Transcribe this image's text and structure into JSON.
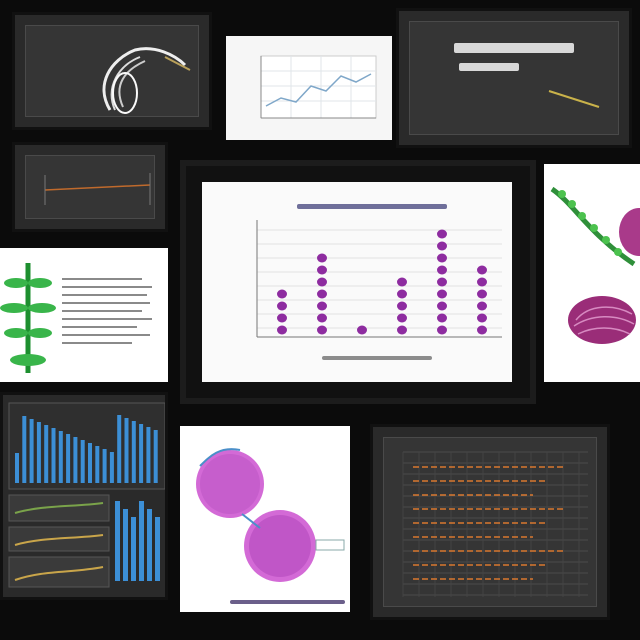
{
  "board": {
    "tiles": [
      {
        "name": "tile-plant-sketch",
        "kind": "dark"
      },
      {
        "name": "tile-line-chart",
        "kind": "light"
      },
      {
        "name": "tile-dark-title",
        "kind": "dark"
      },
      {
        "name": "tile-dark-timeline",
        "kind": "dark"
      },
      {
        "name": "tile-main-chart",
        "kind": "dark"
      },
      {
        "name": "tile-pod-and-bulb",
        "kind": "white"
      },
      {
        "name": "tile-green-plant-notes",
        "kind": "white"
      },
      {
        "name": "tile-blue-bars",
        "kind": "dark"
      },
      {
        "name": "tile-purple-cells",
        "kind": "white"
      },
      {
        "name": "tile-dark-grid-chart",
        "kind": "dark"
      }
    ]
  },
  "colors": {
    "background": "#0b0b0b",
    "purple": "#8e2ca0",
    "green": "#2fa83a",
    "blue": "#3c8fd6",
    "orange": "#d9782f"
  }
}
